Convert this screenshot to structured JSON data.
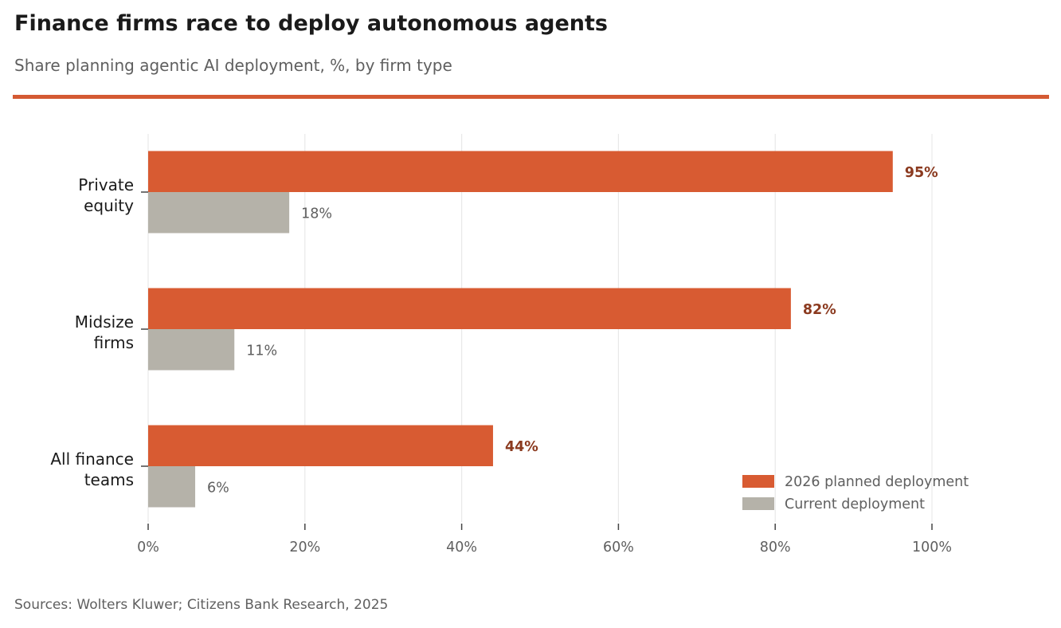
{
  "header": {
    "title": "Finance firms race to deploy autonomous agents",
    "subtitle": "Share planning agentic AI deployment, %, by firm type"
  },
  "footer": {
    "source": "Sources: Wolters Kluwer; Citizens Bank Research, 2025"
  },
  "colors": {
    "accent_rule": "#d45a33",
    "planned": "#d85b32",
    "current": "#b5b2a9",
    "planned_label": "#8b3a1f",
    "gridline": "#e8e8e8"
  },
  "chart_data": {
    "type": "bar",
    "orientation": "horizontal",
    "title": "Finance firms race to deploy autonomous agents",
    "subtitle": "Share planning agentic AI deployment, %, by firm type",
    "categories": [
      [
        "Private",
        "equity"
      ],
      [
        "Midsize",
        "firms"
      ],
      [
        "All finance",
        "teams"
      ]
    ],
    "series": [
      {
        "name": "2026 planned deployment",
        "key": "planned",
        "values": [
          95,
          82,
          44
        ],
        "labels": [
          "95%",
          "82%",
          "44%"
        ]
      },
      {
        "name": "Current deployment",
        "key": "current",
        "values": [
          18,
          11,
          6
        ],
        "labels": [
          "18%",
          "11%",
          "6%"
        ]
      }
    ],
    "xlabel": "",
    "ylabel": "",
    "xlim": [
      0,
      100
    ],
    "xticks": [
      0,
      20,
      40,
      60,
      80,
      100
    ],
    "xtick_labels": [
      "0%",
      "20%",
      "40%",
      "60%",
      "80%",
      "100%"
    ],
    "grid": "vertical",
    "legend_position": "bottom-right",
    "source": "Sources: Wolters Kluwer; Citizens Bank Research, 2025"
  }
}
